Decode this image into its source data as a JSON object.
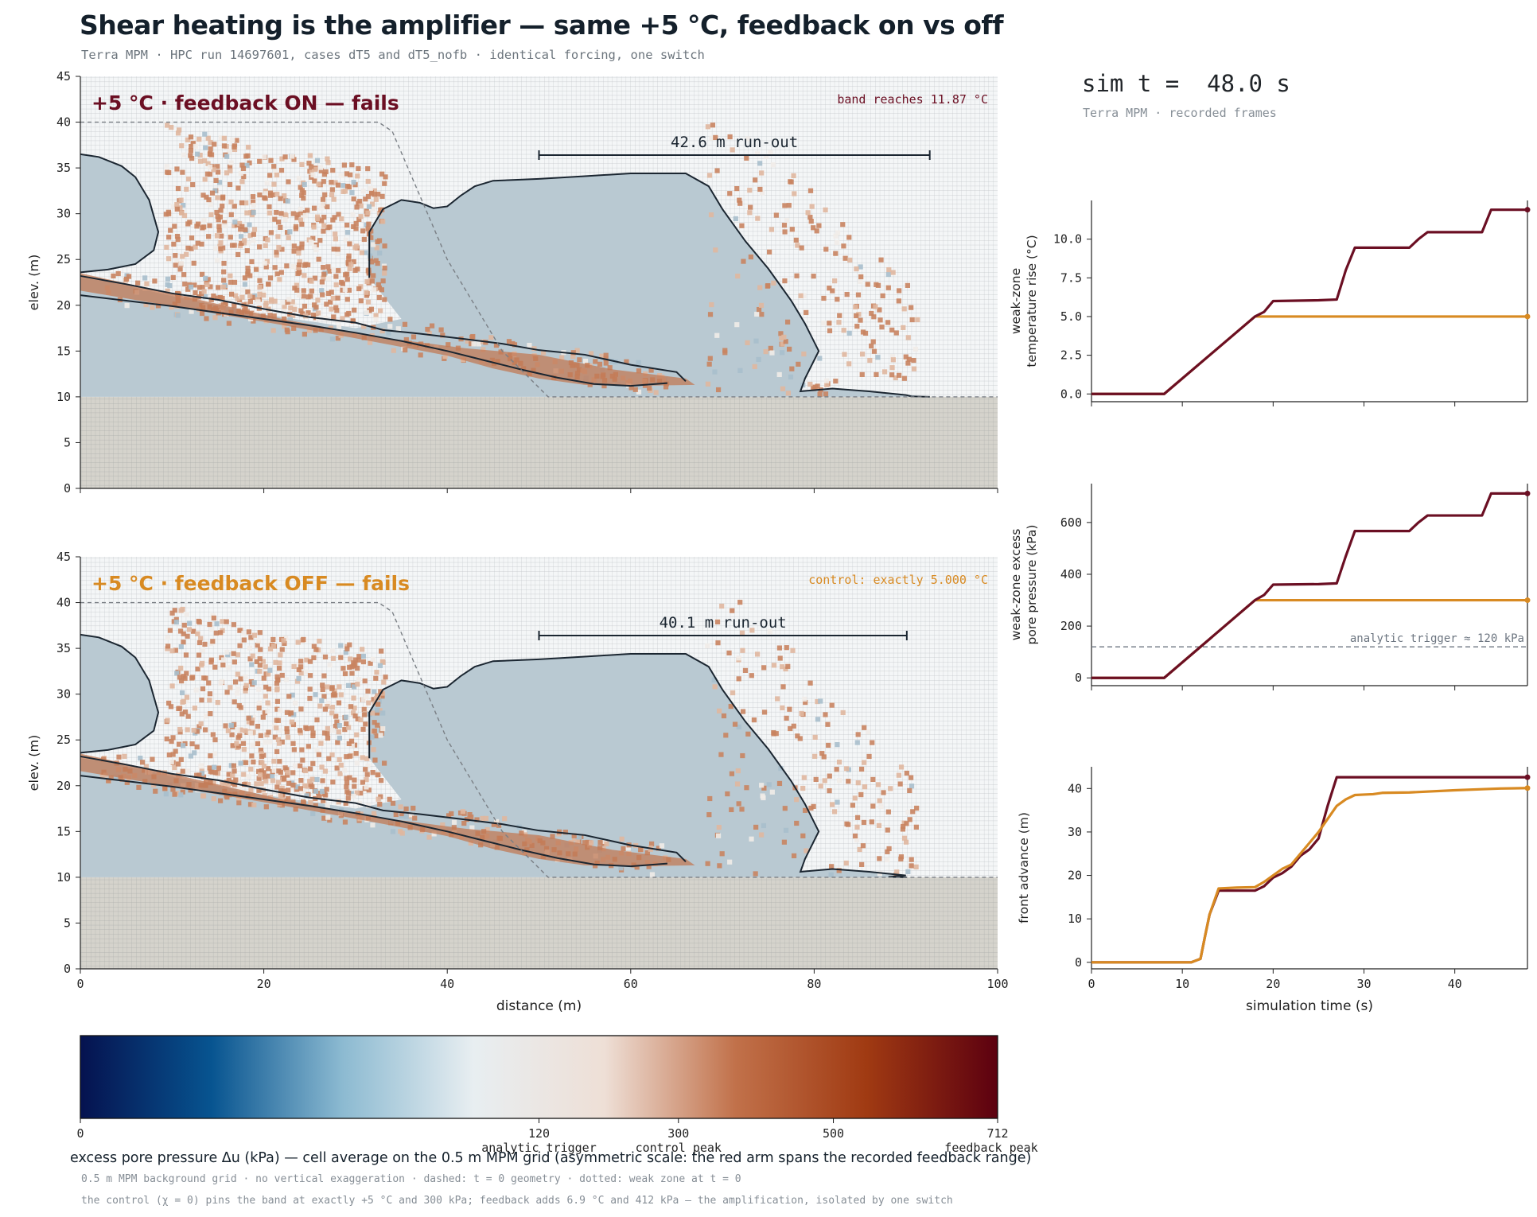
{
  "header": {
    "title": "Shear heating is the amplifier — same +5 °C, feedback on vs off",
    "subtitle": "Terra MPM · HPC run 14697601, cases dT5 and dT5_nofb · identical forcing, one switch"
  },
  "sim": {
    "time_label": "sim t =  48.0 s",
    "subtitle": "Terra MPM · recorded frames"
  },
  "colors": {
    "feedback": "#6b0f23",
    "control": "#d88a22",
    "mass_fill": "#b9c9d2",
    "bedrock": "#d5d3cc",
    "grid": "#7d8590",
    "outline": "#1b2631"
  },
  "colorbar": {
    "label": "excess pore pressure Δu (kPa) — cell average on the 0.5 m MPM grid (asymmetric scale: the red arm spans the recorded feedback range)",
    "ticks": [
      {
        "value": 0,
        "label": "0",
        "sub": ""
      },
      {
        "value": 120,
        "label": "120",
        "sub": "analytic trigger"
      },
      {
        "value": 300,
        "label": "300",
        "sub": "control peak"
      },
      {
        "value": 500,
        "label": "500",
        "sub": ""
      },
      {
        "value": 712,
        "label": "712",
        "sub": "feedback peak"
      }
    ],
    "colormap": [
      "#05124f",
      "#075490",
      "#8cbad1",
      "#e8eef1",
      "#eedfd6",
      "#c1714a",
      "#a03a12",
      "#5c0010"
    ]
  },
  "footnotes": [
    "0.5 m MPM background grid · no vertical exaggeration · dashed: t = 0 geometry · dotted: weak zone at t = 0",
    "the control (χ = 0) pins the band at exactly +5 °C and 300 kPa; feedback adds 6.9 °C and 412 kPa — the amplification, isolated by one switch"
  ],
  "chart_data": [
    {
      "type": "heatmap",
      "panel": "feedback ON",
      "title": "+5 °C · feedback ON — fails",
      "annotation": "band reaches 11.87 °C",
      "runout_label": "42.6 m run-out",
      "runout_m": 42.6,
      "runout_span": [
        50,
        92.6
      ],
      "xlabel": "",
      "ylabel": "elev. (m)",
      "xlim": [
        0,
        100
      ],
      "ylim": [
        0,
        45
      ],
      "xticks": [
        "0",
        "20",
        "40",
        "60",
        "80",
        "100"
      ],
      "yticks": [
        "0",
        "5",
        "10",
        "15",
        "20",
        "25",
        "30",
        "35",
        "40",
        "45"
      ],
      "max_temperature_rise_C": 11.87,
      "peak_pressure_kPa": 712
    },
    {
      "type": "heatmap",
      "panel": "feedback OFF",
      "title": "+5 °C · feedback OFF — fails",
      "annotation": "control: exactly 5.000 °C",
      "runout_label": "40.1 m run-out",
      "runout_m": 40.1,
      "runout_span": [
        50,
        90.1
      ],
      "xlabel": "distance (m)",
      "ylabel": "elev. (m)",
      "xlim": [
        0,
        100
      ],
      "ylim": [
        0,
        45
      ],
      "xticks": [
        "0",
        "20",
        "40",
        "60",
        "80",
        "100"
      ],
      "yticks": [
        "0",
        "5",
        "10",
        "15",
        "20",
        "25",
        "30",
        "35",
        "40",
        "45"
      ],
      "max_temperature_rise_C": 5.0,
      "peak_pressure_kPa": 300
    },
    {
      "type": "line",
      "ylabel": "weak-zone\ntemperature rise (°C)",
      "xlim": [
        0,
        48
      ],
      "ylim": [
        -0.5,
        12.5
      ],
      "yticks": [
        "0.0",
        "2.5",
        "5.0",
        "7.5",
        "10.0"
      ],
      "series": [
        {
          "key": "feedback",
          "x": [
            0,
            8,
            18,
            19,
            20,
            25,
            27,
            28,
            29,
            32,
            35,
            36,
            37,
            40,
            43,
            44,
            45,
            48
          ],
          "y": [
            0,
            0,
            5,
            5.3,
            6,
            6.05,
            6.1,
            8,
            9.45,
            9.45,
            9.45,
            10,
            10.45,
            10.45,
            10.45,
            11.9,
            11.9,
            11.9
          ]
        },
        {
          "key": "control",
          "x": [
            0,
            8,
            18,
            48
          ],
          "y": [
            0,
            0,
            5,
            5
          ]
        }
      ]
    },
    {
      "type": "line",
      "ylabel": "weak-zone excess\npore pressure (kPa)",
      "xlim": [
        0,
        48
      ],
      "ylim": [
        -30,
        750
      ],
      "yticks": [
        "0",
        "200",
        "400",
        "600"
      ],
      "reference_line": {
        "y": 120,
        "label": "analytic trigger ≈ 120 kPa"
      },
      "series": [
        {
          "key": "feedback",
          "x": [
            0,
            8,
            18,
            19,
            20,
            25,
            27,
            28,
            29,
            32,
            35,
            36,
            37,
            40,
            43,
            44,
            45,
            48
          ],
          "y": [
            0,
            0,
            300,
            320,
            360,
            362,
            365,
            470,
            567,
            567,
            567,
            600,
            627,
            627,
            627,
            712,
            712,
            712
          ]
        },
        {
          "key": "control",
          "x": [
            0,
            8,
            18,
            48
          ],
          "y": [
            0,
            0,
            300,
            300
          ]
        }
      ]
    },
    {
      "type": "line",
      "xlabel": "simulation time (s)",
      "ylabel": "front advance (m)",
      "xlim": [
        0,
        48
      ],
      "ylim": [
        -1.5,
        45
      ],
      "xticks": [
        "0",
        "10",
        "20",
        "30",
        "40"
      ],
      "yticks": [
        "0",
        "10",
        "20",
        "30",
        "40"
      ],
      "series": [
        {
          "key": "feedback",
          "x": [
            0,
            11,
            12,
            12.5,
            13,
            14,
            16,
            18,
            19,
            20,
            21,
            22,
            23,
            24,
            25,
            26,
            27,
            28,
            30,
            48
          ],
          "y": [
            0,
            0,
            0.8,
            6,
            11,
            16.5,
            16.5,
            16.5,
            17.5,
            19.5,
            20.5,
            22,
            24.5,
            26,
            28.5,
            36,
            42.6,
            42.6,
            42.6,
            42.6
          ]
        },
        {
          "key": "control",
          "x": [
            0,
            11,
            12,
            12.5,
            13,
            14,
            16,
            18,
            19,
            20,
            21,
            22,
            23,
            24,
            25,
            26,
            27,
            28,
            29,
            30,
            31,
            32,
            35,
            40,
            45,
            48
          ],
          "y": [
            0,
            0,
            0.8,
            6,
            11,
            17,
            17.2,
            17.3,
            18.5,
            20,
            21.5,
            22.5,
            25,
            27.5,
            30,
            33,
            36,
            37.5,
            38.5,
            38.6,
            38.7,
            39,
            39.1,
            39.6,
            40,
            40.1
          ]
        }
      ]
    }
  ]
}
